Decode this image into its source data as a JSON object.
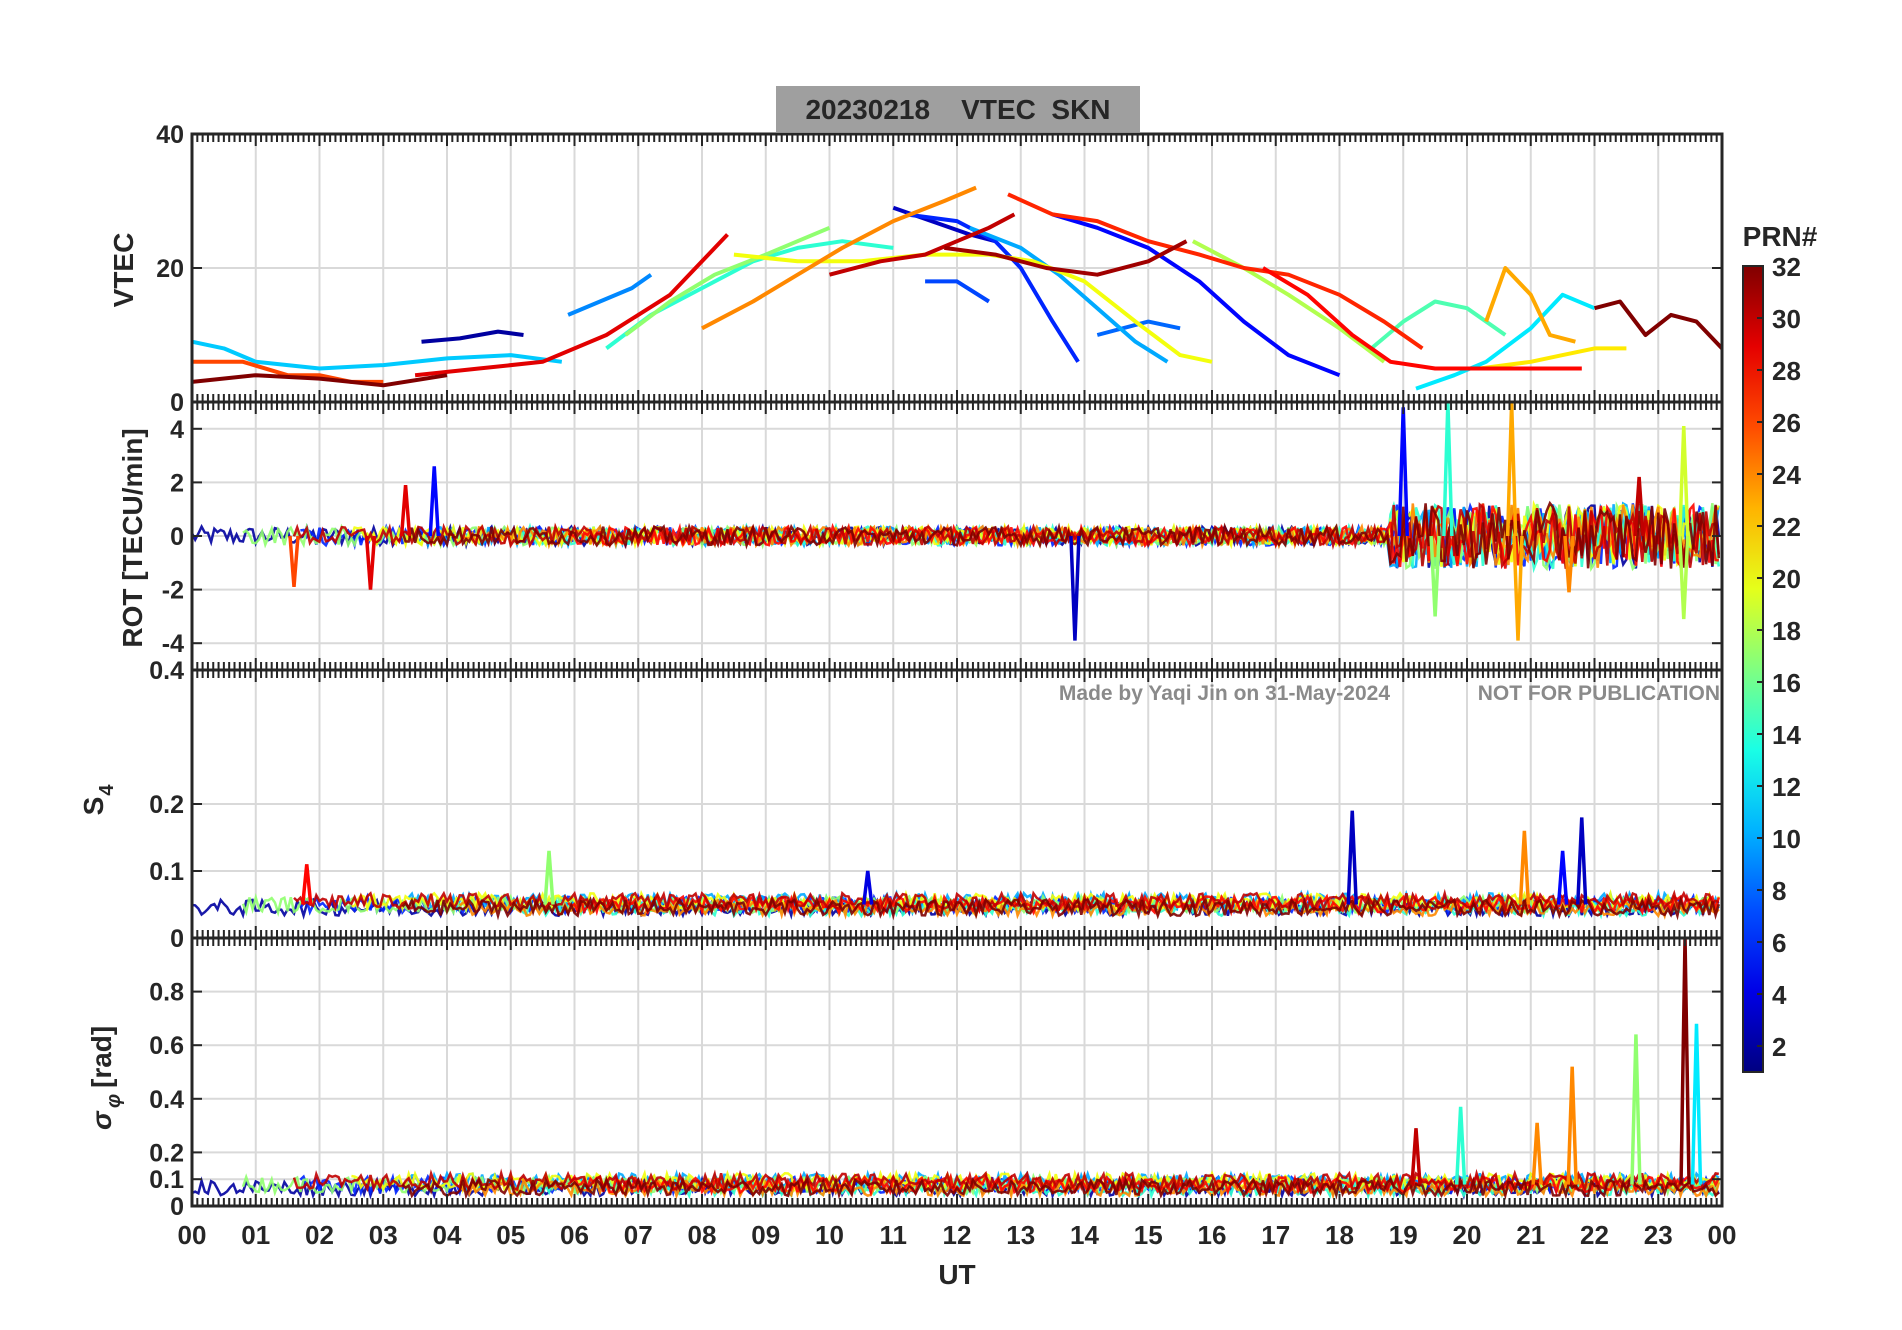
{
  "figure": {
    "title": "20230218    VTEC  SKN",
    "xlabel": "UT",
    "xticks": [
      "00",
      "01",
      "02",
      "03",
      "04",
      "05",
      "06",
      "07",
      "08",
      "09",
      "10",
      "11",
      "12",
      "13",
      "14",
      "15",
      "16",
      "17",
      "18",
      "19",
      "20",
      "21",
      "22",
      "23",
      "00"
    ],
    "watermark_left": "Made by Yaqi Jin on 31-May-2024",
    "watermark_right": "NOT FOR PUBLICATION"
  },
  "colorbar": {
    "title": "PRN#",
    "range": [
      1,
      32
    ],
    "ticks": [
      "2",
      "4",
      "6",
      "8",
      "10",
      "12",
      "14",
      "16",
      "18",
      "20",
      "22",
      "24",
      "26",
      "28",
      "30",
      "32"
    ]
  },
  "chart_data": [
    {
      "type": "line",
      "panel": "vtec",
      "title": "20230218    VTEC  SKN",
      "ylabel": "VTEC",
      "ylim": [
        0,
        40
      ],
      "yticks": [
        "0",
        "20",
        "40"
      ],
      "xlim": [
        0,
        24
      ],
      "series": [
        {
          "prn": 2,
          "x": [
            3.6,
            4.2,
            4.8,
            5.2
          ],
          "values": [
            9,
            9.5,
            10.5,
            10
          ]
        },
        {
          "prn": 3,
          "x": [
            11.0,
            11.6,
            12.2,
            12.6
          ],
          "values": [
            29,
            27,
            25,
            24
          ]
        },
        {
          "prn": 5,
          "x": [
            13.5,
            14.2,
            15.0,
            15.8,
            16.5,
            17.2,
            18.0
          ],
          "values": [
            28,
            26,
            23,
            18,
            12,
            7,
            4
          ]
        },
        {
          "prn": 6,
          "x": [
            11.2,
            12.0,
            12.6,
            13.0,
            13.5,
            13.9
          ],
          "values": [
            28,
            27,
            24,
            20,
            12,
            6
          ]
        },
        {
          "prn": 7,
          "x": [
            11.5,
            12.0,
            12.5
          ],
          "values": [
            18,
            18,
            15
          ]
        },
        {
          "prn": 8,
          "x": [
            14.2,
            15.0,
            15.5
          ],
          "values": [
            10,
            12,
            11
          ]
        },
        {
          "prn": 9,
          "x": [
            5.9,
            6.4,
            6.9,
            7.2
          ],
          "values": [
            13,
            15,
            17,
            19
          ]
        },
        {
          "prn": 10,
          "x": [
            12.2,
            13.0,
            13.6,
            14.2,
            14.8,
            15.3
          ],
          "values": [
            26,
            23,
            19,
            14,
            9,
            6
          ]
        },
        {
          "prn": 11,
          "x": [
            0.0,
            0.5,
            1.0,
            2.0,
            3.0,
            4.0,
            5.0,
            5.8
          ],
          "values": [
            9,
            8,
            6,
            5,
            5.5,
            6.5,
            7,
            6
          ]
        },
        {
          "prn": 12,
          "x": [
            19.2,
            19.8,
            20.3,
            21.0,
            21.5,
            22.0
          ],
          "values": [
            2,
            4,
            6,
            11,
            16,
            14
          ]
        },
        {
          "prn": 14,
          "x": [
            6.5,
            7.2,
            8.0,
            8.8,
            9.5,
            10.2,
            11.0
          ],
          "values": [
            8,
            13,
            17,
            21,
            23,
            24,
            23
          ]
        },
        {
          "prn": 15,
          "x": [
            18.5,
            19.0,
            19.5,
            20.0,
            20.6
          ],
          "values": [
            8,
            12,
            15,
            14,
            10
          ]
        },
        {
          "prn": 17,
          "x": [
            6.8,
            7.5,
            8.2,
            9.0,
            9.5,
            10.0
          ],
          "values": [
            10,
            15,
            19,
            22,
            24,
            26
          ]
        },
        {
          "prn": 18,
          "x": [
            15.7,
            16.5,
            17.2,
            18.0,
            18.7
          ],
          "values": [
            24,
            20,
            16,
            11,
            6
          ]
        },
        {
          "prn": 20,
          "x": [
            8.5,
            9.5,
            10.5,
            11.5,
            12.5,
            13.2,
            14.0,
            14.8,
            15.5,
            16.0
          ],
          "values": [
            22,
            21,
            21,
            22,
            22,
            21,
            18,
            12,
            7,
            6
          ]
        },
        {
          "prn": 21,
          "x": [
            20.2,
            21.0,
            21.5,
            22.0,
            22.5
          ],
          "values": [
            5,
            6,
            7,
            8,
            8
          ]
        },
        {
          "prn": 23,
          "x": [
            20.3,
            20.6,
            21.0,
            21.3,
            21.7
          ],
          "values": [
            12,
            20,
            16,
            10,
            9
          ]
        },
        {
          "prn": 24,
          "x": [
            8.0,
            8.8,
            9.5,
            10.2,
            11.0,
            11.8,
            12.3
          ],
          "values": [
            11,
            15,
            19,
            23,
            27,
            30,
            32
          ]
        },
        {
          "prn": 26,
          "x": [
            0.0,
            0.8,
            1.5,
            2.0,
            2.5,
            3.0
          ],
          "values": [
            6,
            6,
            4,
            4,
            3,
            3
          ]
        },
        {
          "prn": 27,
          "x": [
            12.8,
            13.5,
            14.2,
            15.0,
            15.8,
            16.5,
            17.2,
            18.0,
            18.7,
            19.3
          ],
          "values": [
            31,
            28,
            27,
            24,
            22,
            20,
            19,
            16,
            12,
            8
          ]
        },
        {
          "prn": 28,
          "x": [
            16.8,
            17.5,
            18.2,
            18.8,
            19.5,
            20.2,
            21.0,
            21.8
          ],
          "values": [
            20,
            16,
            10,
            6,
            5,
            5,
            5,
            5
          ]
        },
        {
          "prn": 29,
          "x": [
            3.5,
            4.5,
            5.5,
            6.5,
            7.5,
            8.0,
            8.4
          ],
          "values": [
            4,
            5,
            6,
            10,
            16,
            21,
            25
          ]
        },
        {
          "prn": 30,
          "x": [
            10.0,
            10.8,
            11.5,
            12.0,
            12.5,
            12.9
          ],
          "values": [
            19,
            21,
            22,
            24,
            26,
            28
          ]
        },
        {
          "prn": 31,
          "x": [
            11.8,
            12.6,
            13.4,
            14.2,
            15.0,
            15.6
          ],
          "values": [
            23,
            22,
            20,
            19,
            21,
            24
          ]
        },
        {
          "prn": 32,
          "x": [
            0.0,
            1.0,
            2.0,
            3.0,
            4.0
          ],
          "values": [
            3,
            4,
            3.5,
            2.5,
            4
          ]
        },
        {
          "prn": 32,
          "x": [
            22.0,
            22.4,
            22.8,
            23.2,
            23.6,
            24.0
          ],
          "values": [
            14,
            15,
            10,
            13,
            12,
            8
          ]
        }
      ]
    },
    {
      "type": "line",
      "panel": "rot",
      "ylabel": "ROT [TECU/min]",
      "ylim": [
        -5,
        5
      ],
      "yticks": [
        "-4",
        "-2",
        "0",
        "2",
        "4"
      ],
      "xlim": [
        0,
        24
      ],
      "spikes": [
        {
          "prn": 26,
          "x": 1.6,
          "value": -1.9
        },
        {
          "prn": 29,
          "x": 2.8,
          "value": -2
        },
        {
          "prn": 29,
          "x": 3.35,
          "value": 1.9
        },
        {
          "prn": 5,
          "x": 3.8,
          "value": 2.6
        },
        {
          "prn": 3,
          "x": 13.85,
          "value": -3.9
        },
        {
          "prn": 5,
          "x": 19.0,
          "value": 4.8
        },
        {
          "prn": 14,
          "x": 19.7,
          "value": 5
        },
        {
          "prn": 17,
          "x": 19.5,
          "value": -3
        },
        {
          "prn": 23,
          "x": 20.7,
          "value": 5
        },
        {
          "prn": 23,
          "x": 20.8,
          "value": -3.9
        },
        {
          "prn": 24,
          "x": 21.6,
          "value": -2.1
        },
        {
          "prn": 30,
          "x": 22.7,
          "value": 2.2
        },
        {
          "prn": 19,
          "x": 23.4,
          "value": 4.1
        },
        {
          "prn": 18,
          "x": 23.4,
          "value": -3.1
        }
      ]
    },
    {
      "type": "line",
      "panel": "s4",
      "ylabel": "S4",
      "ylim": [
        0,
        0.4
      ],
      "yticks": [
        "0",
        "0.1",
        "0.2",
        "0.4"
      ],
      "xlim": [
        0,
        24
      ],
      "baseline": 0.05,
      "spikes": [
        {
          "prn": 17,
          "x": 5.6,
          "value": 0.13
        },
        {
          "prn": 3,
          "x": 18.2,
          "value": 0.19
        },
        {
          "prn": 3,
          "x": 21.8,
          "value": 0.18
        },
        {
          "prn": 24,
          "x": 20.9,
          "value": 0.16
        },
        {
          "prn": 5,
          "x": 21.5,
          "value": 0.13
        },
        {
          "prn": 28,
          "x": 1.8,
          "value": 0.11
        },
        {
          "prn": 4,
          "x": 10.6,
          "value": 0.1
        }
      ]
    },
    {
      "type": "line",
      "panel": "sigma_phi",
      "ylabel": "σ_φ [rad]",
      "ylim": [
        0,
        1
      ],
      "yticks": [
        "0",
        "0.1",
        "0.2",
        "0.4",
        "0.6",
        "0.8"
      ],
      "xlim": [
        0,
        24
      ],
      "baseline": 0.08,
      "spikes": [
        {
          "prn": 30,
          "x": 19.2,
          "value": 0.29
        },
        {
          "prn": 14,
          "x": 19.9,
          "value": 0.37
        },
        {
          "prn": 24,
          "x": 21.65,
          "value": 0.52
        },
        {
          "prn": 24,
          "x": 21.1,
          "value": 0.31
        },
        {
          "prn": 17,
          "x": 22.65,
          "value": 0.64
        },
        {
          "prn": 32,
          "x": 23.42,
          "value": 1
        },
        {
          "prn": 12,
          "x": 23.6,
          "value": 0.68
        }
      ]
    }
  ]
}
